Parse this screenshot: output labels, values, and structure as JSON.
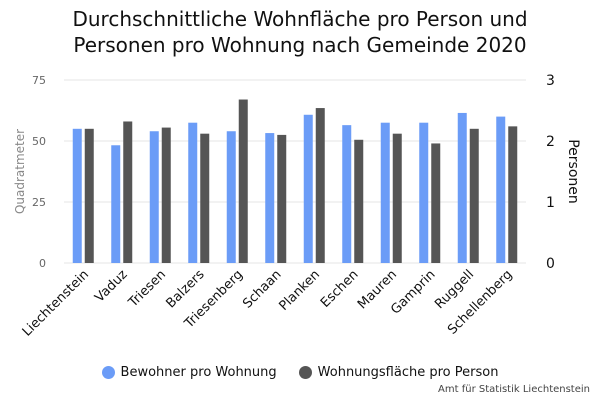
{
  "title_lines": [
    "Durchschnittliche Wohnfläche pro Person und",
    "Personen pro Wohnung nach Gemeinde 2020"
  ],
  "source": "Amt für Statistik Liechtenstein",
  "colors": {
    "bewohner": "#6b9cf7",
    "wohnflaeche": "#555555",
    "grid": "#e6e6e6"
  },
  "chart_data": {
    "type": "bar",
    "title": "Durchschnittliche Wohnfläche pro Person und Personen pro Wohnung nach Gemeinde 2020",
    "categories": [
      "Liechtenstein",
      "Vaduz",
      "Triesen",
      "Balzers",
      "Triesenberg",
      "Schaan",
      "Planken",
      "Eschen",
      "Mauren",
      "Gamprin",
      "Ruggell",
      "Schellenberg"
    ],
    "y_left": {
      "label": "Quadratmeter",
      "ylim": [
        0,
        75
      ],
      "ticks": [
        "0",
        "25",
        "50",
        "75"
      ]
    },
    "y_right": {
      "label": "Personen",
      "ylim": [
        0,
        3
      ],
      "ticks": [
        "0",
        "1",
        "2",
        "3"
      ]
    },
    "series": [
      {
        "name": "Bewohner pro Wohnung",
        "axis": "right",
        "values": [
          2.2,
          1.93,
          2.16,
          2.3,
          2.16,
          2.13,
          2.43,
          2.26,
          2.3,
          2.3,
          2.46,
          2.4
        ]
      },
      {
        "name": "Wohnungsfläche pro Person",
        "axis": "left",
        "values": [
          55,
          58,
          55.5,
          53,
          67,
          52.5,
          63.5,
          50.5,
          53,
          49,
          55,
          56
        ]
      }
    ],
    "grid": true,
    "legend_position": "bottom"
  }
}
